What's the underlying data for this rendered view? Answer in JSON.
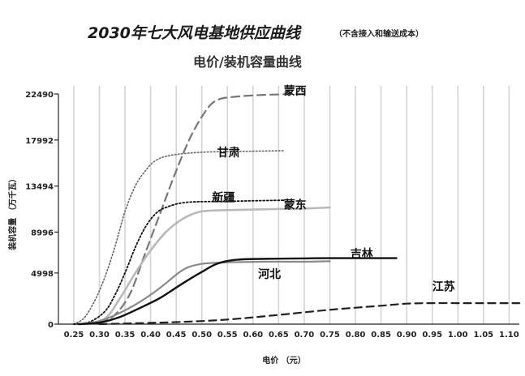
{
  "chart_data": {
    "type": "line",
    "title": "2030年七大风电基地供应曲线",
    "title_note": "（不含接入和输送成本）",
    "subtitle": "电价/装机容量曲线",
    "xlabel": "电价 （元）",
    "ylabel": "装机容量 （万千瓦）",
    "xlim": [
      0.22,
      1.12
    ],
    "ylim": [
      0,
      22490
    ],
    "xticks": [
      0.25,
      0.3,
      0.35,
      0.4,
      0.45,
      0.5,
      0.55,
      0.6,
      0.65,
      0.7,
      0.75,
      0.8,
      0.85,
      0.9,
      0.95,
      1.0,
      1.05,
      1.1
    ],
    "xtick_labels": [
      "0.25",
      "0.30",
      "0.35",
      "0.40",
      "0.45",
      "0.50",
      "0.55",
      "0.60",
      "0.65",
      "0.70",
      "0.75",
      "0.80",
      "0.85",
      "0.90",
      "0.95",
      "1.00",
      "1.05",
      "1.10"
    ],
    "yticks": [
      0,
      4998,
      8996,
      13494,
      17992,
      22490
    ],
    "ytick_labels": [
      "0",
      "4998",
      "8996",
      "13494",
      "17992",
      "22490"
    ],
    "grid": "vertical",
    "series": [
      {
        "name": "蒙西",
        "color": "#777777",
        "dash": "10,6",
        "width": 2.2,
        "points": [
          [
            0.25,
            0
          ],
          [
            0.3,
            150
          ],
          [
            0.33,
            900
          ],
          [
            0.36,
            3000
          ],
          [
            0.39,
            7000
          ],
          [
            0.42,
            11000
          ],
          [
            0.45,
            15000
          ],
          [
            0.48,
            18500
          ],
          [
            0.51,
            21000
          ],
          [
            0.53,
            21900
          ],
          [
            0.56,
            22200
          ],
          [
            0.62,
            22400
          ],
          [
            0.7,
            22490
          ]
        ]
      },
      {
        "name": "甘肃",
        "color": "#666666",
        "dash": "1.5,2.5",
        "width": 1.6,
        "points": [
          [
            0.25,
            0
          ],
          [
            0.27,
            600
          ],
          [
            0.29,
            2200
          ],
          [
            0.31,
            4500
          ],
          [
            0.33,
            7500
          ],
          [
            0.35,
            11000
          ],
          [
            0.37,
            13500
          ],
          [
            0.39,
            15000
          ],
          [
            0.41,
            16000
          ],
          [
            0.44,
            16500
          ],
          [
            0.5,
            16800
          ],
          [
            0.6,
            16900
          ],
          [
            0.66,
            16950
          ]
        ]
      },
      {
        "name": "新疆",
        "color": "#111111",
        "dash": "2,2.5",
        "width": 1.8,
        "points": [
          [
            0.25,
            0
          ],
          [
            0.28,
            200
          ],
          [
            0.31,
            1200
          ],
          [
            0.33,
            2800
          ],
          [
            0.35,
            5000
          ],
          [
            0.37,
            7500
          ],
          [
            0.39,
            9500
          ],
          [
            0.41,
            10800
          ],
          [
            0.43,
            11400
          ],
          [
            0.47,
            11900
          ],
          [
            0.55,
            12000
          ],
          [
            0.65,
            12100
          ],
          [
            0.66,
            12100
          ]
        ]
      },
      {
        "name": "蒙东",
        "color": "#b9b9b9",
        "dash": "",
        "width": 2.6,
        "points": [
          [
            0.27,
            0
          ],
          [
            0.31,
            500
          ],
          [
            0.34,
            2500
          ],
          [
            0.37,
            5000
          ],
          [
            0.4,
            7200
          ],
          [
            0.43,
            9000
          ],
          [
            0.46,
            10200
          ],
          [
            0.49,
            10900
          ],
          [
            0.52,
            11100
          ],
          [
            0.6,
            11200
          ],
          [
            0.7,
            11300
          ],
          [
            0.75,
            11400
          ]
        ]
      },
      {
        "name": "河北",
        "color": "#8a8a8a",
        "dash": "",
        "width": 2.2,
        "points": [
          [
            0.26,
            0
          ],
          [
            0.3,
            300
          ],
          [
            0.34,
            1100
          ],
          [
            0.38,
            2200
          ],
          [
            0.42,
            3600
          ],
          [
            0.46,
            5200
          ],
          [
            0.49,
            5800
          ],
          [
            0.53,
            6000
          ],
          [
            0.62,
            6100
          ],
          [
            0.7,
            6100
          ],
          [
            0.75,
            6150
          ]
        ]
      },
      {
        "name": "吉林",
        "color": "#111111",
        "dash": "",
        "width": 2.4,
        "points": [
          [
            0.26,
            0
          ],
          [
            0.3,
            150
          ],
          [
            0.34,
            700
          ],
          [
            0.38,
            1600
          ],
          [
            0.42,
            2600
          ],
          [
            0.46,
            3900
          ],
          [
            0.5,
            5100
          ],
          [
            0.53,
            5900
          ],
          [
            0.57,
            6300
          ],
          [
            0.65,
            6400
          ],
          [
            0.75,
            6450
          ],
          [
            0.85,
            6450
          ],
          [
            0.88,
            6450
          ]
        ]
      },
      {
        "name": "江苏",
        "color": "#222222",
        "dash": "9,6",
        "width": 2.2,
        "points": [
          [
            0.3,
            0
          ],
          [
            0.45,
            200
          ],
          [
            0.55,
            450
          ],
          [
            0.65,
            900
          ],
          [
            0.75,
            1400
          ],
          [
            0.85,
            1800
          ],
          [
            0.9,
            2000
          ],
          [
            0.95,
            2050
          ],
          [
            1.0,
            2050
          ],
          [
            1.05,
            2050
          ],
          [
            1.1,
            2050
          ],
          [
            1.12,
            2050
          ]
        ]
      }
    ],
    "annotations": [
      {
        "text": "蒙西",
        "x": 0.66,
        "y": 22400
      },
      {
        "text": "甘肃",
        "x": 0.53,
        "y": 16400
      },
      {
        "text": "新疆",
        "x": 0.52,
        "y": 12000
      },
      {
        "text": "蒙东",
        "x": 0.66,
        "y": 11300
      },
      {
        "text": "吉林",
        "x": 0.79,
        "y": 6500
      },
      {
        "text": "河北",
        "x": 0.61,
        "y": 4500
      },
      {
        "text": "江苏",
        "x": 0.95,
        "y": 3300
      }
    ]
  }
}
